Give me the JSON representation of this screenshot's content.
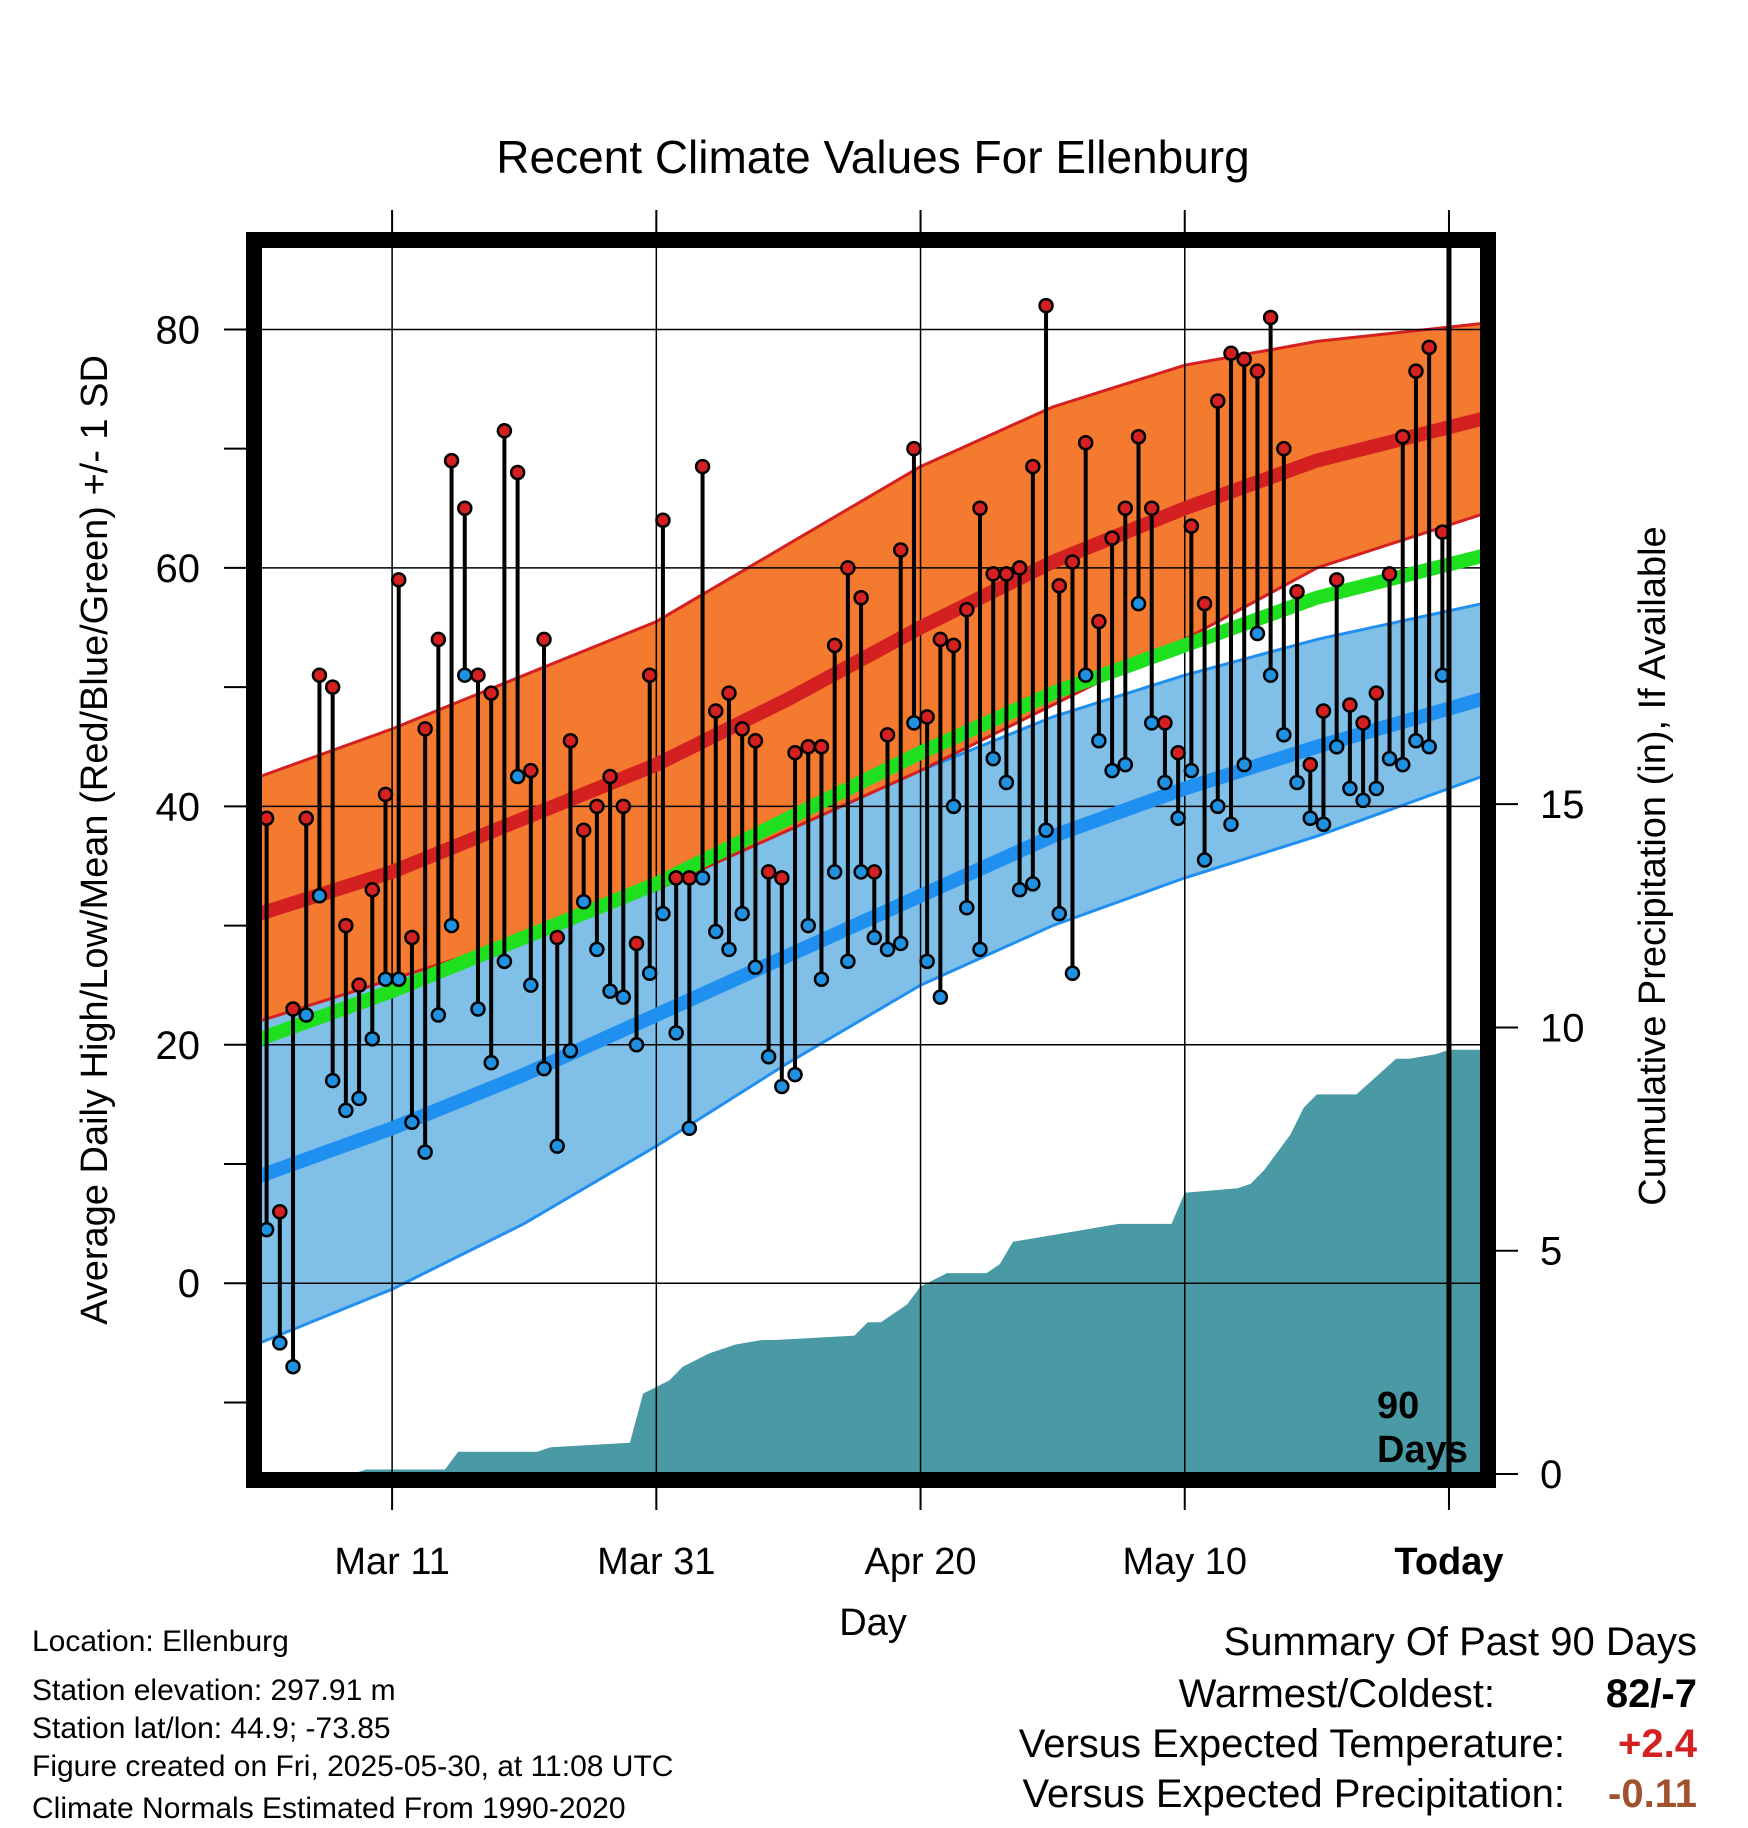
{
  "chart_data": {
    "type": "line",
    "title": "Recent Climate Values For Ellenburg",
    "xlabel": "Day",
    "ylabel": "Average Daily High/Low/Mean (Red/Blue/Green) +/- 1 SD",
    "y2label": "Cumulative Precipitation (in), If Available",
    "ylim": [
      -16,
      87
    ],
    "y2lim": [
      0,
      27.5
    ],
    "x_range_days": [
      0,
      92.5
    ],
    "grid": true,
    "x_ticks": [
      {
        "day": 10,
        "label": "Mar 11"
      },
      {
        "day": 30,
        "label": "Mar 31"
      },
      {
        "day": 50,
        "label": "Apr 20"
      },
      {
        "day": 70,
        "label": "May 10"
      },
      {
        "day": 90,
        "label": "Today"
      }
    ],
    "y_ticks": [
      0,
      20,
      40,
      60,
      80
    ],
    "y2_ticks": [
      0,
      5,
      10,
      15
    ],
    "marker_label_line1": "90",
    "marker_label_line2": "Days",
    "normals": {
      "days": [
        0,
        10,
        20,
        30,
        40,
        50,
        60,
        70,
        80,
        92.5
      ],
      "high_mean": [
        31,
        34.5,
        39,
        43.5,
        49,
        55,
        60.5,
        65,
        69,
        72.5
      ],
      "high_upper": [
        42.5,
        46.5,
        51,
        55.5,
        62,
        68.5,
        73.5,
        77,
        79,
        80.5
      ],
      "high_lower": [
        22,
        25.5,
        29,
        33,
        38,
        43,
        48.5,
        54,
        60,
        64.5
      ],
      "avg_mean": [
        20.5,
        24.5,
        29,
        33.5,
        39,
        44.5,
        49.5,
        53.5,
        57.5,
        61
      ],
      "low_mean": [
        9,
        13,
        17.5,
        22.5,
        27.5,
        32.5,
        37.5,
        41.5,
        45,
        49
      ],
      "low_upper": [
        23.5,
        27,
        29.5,
        33,
        38,
        43,
        47.5,
        51,
        54,
        57
      ],
      "low_lower": [
        -5,
        -0.5,
        5,
        11.5,
        18.5,
        25,
        30,
        34,
        37.5,
        42.5
      ]
    },
    "series": [
      {
        "name": "Daily High",
        "color": "#d42020",
        "values": [
          39,
          6,
          23,
          39,
          51,
          50,
          30,
          25,
          33,
          41,
          59,
          29,
          46.5,
          54,
          69,
          65,
          51,
          49.5,
          71.5,
          68,
          43,
          54,
          29,
          45.5,
          38,
          40,
          42.5,
          40,
          28.5,
          51,
          64,
          34,
          34,
          68.5,
          48,
          49.5,
          46.5,
          45.5,
          34.5,
          34,
          44.5,
          45,
          45,
          53.5,
          60,
          57.5,
          34.5,
          46,
          61.5,
          70,
          47.5,
          54,
          53.5,
          56.5,
          65,
          59.5,
          59.5,
          60,
          68.5,
          82,
          58.5,
          60.5,
          70.5,
          55.5,
          62.5,
          65,
          71,
          65,
          47,
          44.5,
          63.5,
          57,
          74,
          78,
          77.5,
          76.5,
          81,
          70,
          58,
          43.5,
          48,
          59,
          48.5,
          47,
          49.5,
          59.5,
          71,
          76.5,
          78.5,
          63
        ]
      },
      {
        "name": "Daily Low",
        "color": "#2090e0",
        "values": [
          4.5,
          -5,
          -7,
          22.5,
          32.5,
          17,
          14.5,
          15.5,
          20.5,
          25.5,
          25.5,
          13.5,
          11,
          22.5,
          30,
          51,
          23,
          18.5,
          27,
          42.5,
          25,
          18,
          11.5,
          19.5,
          32,
          28,
          24.5,
          24,
          20,
          26,
          31,
          21,
          13,
          34,
          29.5,
          28,
          31,
          26.5,
          19,
          16.5,
          17.5,
          30,
          25.5,
          34.5,
          27,
          34.5,
          29,
          28,
          28.5,
          47,
          27,
          24,
          40,
          31.5,
          28,
          44,
          42,
          33,
          33.5,
          38,
          31,
          26,
          51,
          45.5,
          43,
          43.5,
          57,
          47,
          42,
          39,
          43,
          35.5,
          40,
          38.5,
          43.5,
          54.5,
          51,
          46,
          42,
          39,
          38.5,
          45,
          41.5,
          40.5,
          41.5,
          44,
          43.5,
          45.5,
          45,
          51
        ]
      }
    ],
    "precipitation_cumulative": {
      "days": [
        0,
        7,
        8,
        14,
        15,
        21,
        22,
        28,
        29,
        31,
        32,
        34,
        36,
        38,
        39,
        45,
        46,
        47,
        49,
        50,
        52,
        55,
        56,
        57,
        61,
        63,
        65,
        69,
        70,
        74,
        75,
        76,
        78,
        79,
        80,
        82,
        83,
        86,
        87,
        89,
        90,
        92.5
      ],
      "values": [
        0,
        0,
        0.1,
        0.1,
        0.5,
        0.5,
        0.6,
        0.7,
        1.8,
        2.1,
        2.4,
        2.7,
        2.9,
        3,
        3,
        3.1,
        3.4,
        3.4,
        3.8,
        4.2,
        4.5,
        4.5,
        4.7,
        5.2,
        5.4,
        5.5,
        5.6,
        5.6,
        6.3,
        6.4,
        6.5,
        6.8,
        7.6,
        8.2,
        8.5,
        8.5,
        8.5,
        9.3,
        9.3,
        9.4,
        9.5,
        9.5
      ]
    }
  },
  "location": "Location: Ellenburg",
  "elevation": "Station elevation: 297.91 m",
  "latlon": "Station lat/lon: 44.9; -73.85",
  "created": "Figure created on Fri, 2025-05-30, at 11:08 UTC",
  "normals_period": "Climate Normals Estimated From 1990-2020",
  "summary": {
    "title": "Summary Of Past 90 Days",
    "warmest_label": "Warmest/Coldest:",
    "warmest_value": "82/-7",
    "temp_label": "Versus Expected Temperature:",
    "temp_value": "+2.4",
    "temp_color": "#d42020",
    "precip_label": "Versus Expected Precipitation:",
    "precip_value": "-0.11",
    "precip_color": "#a0522d"
  },
  "colors": {
    "high_band": "#f47a30",
    "high_line": "#d42020",
    "avg_line": "#1ee01e",
    "low_band": "#80c0e8",
    "low_line": "#2090f0",
    "precip": "#4a9aa5"
  }
}
